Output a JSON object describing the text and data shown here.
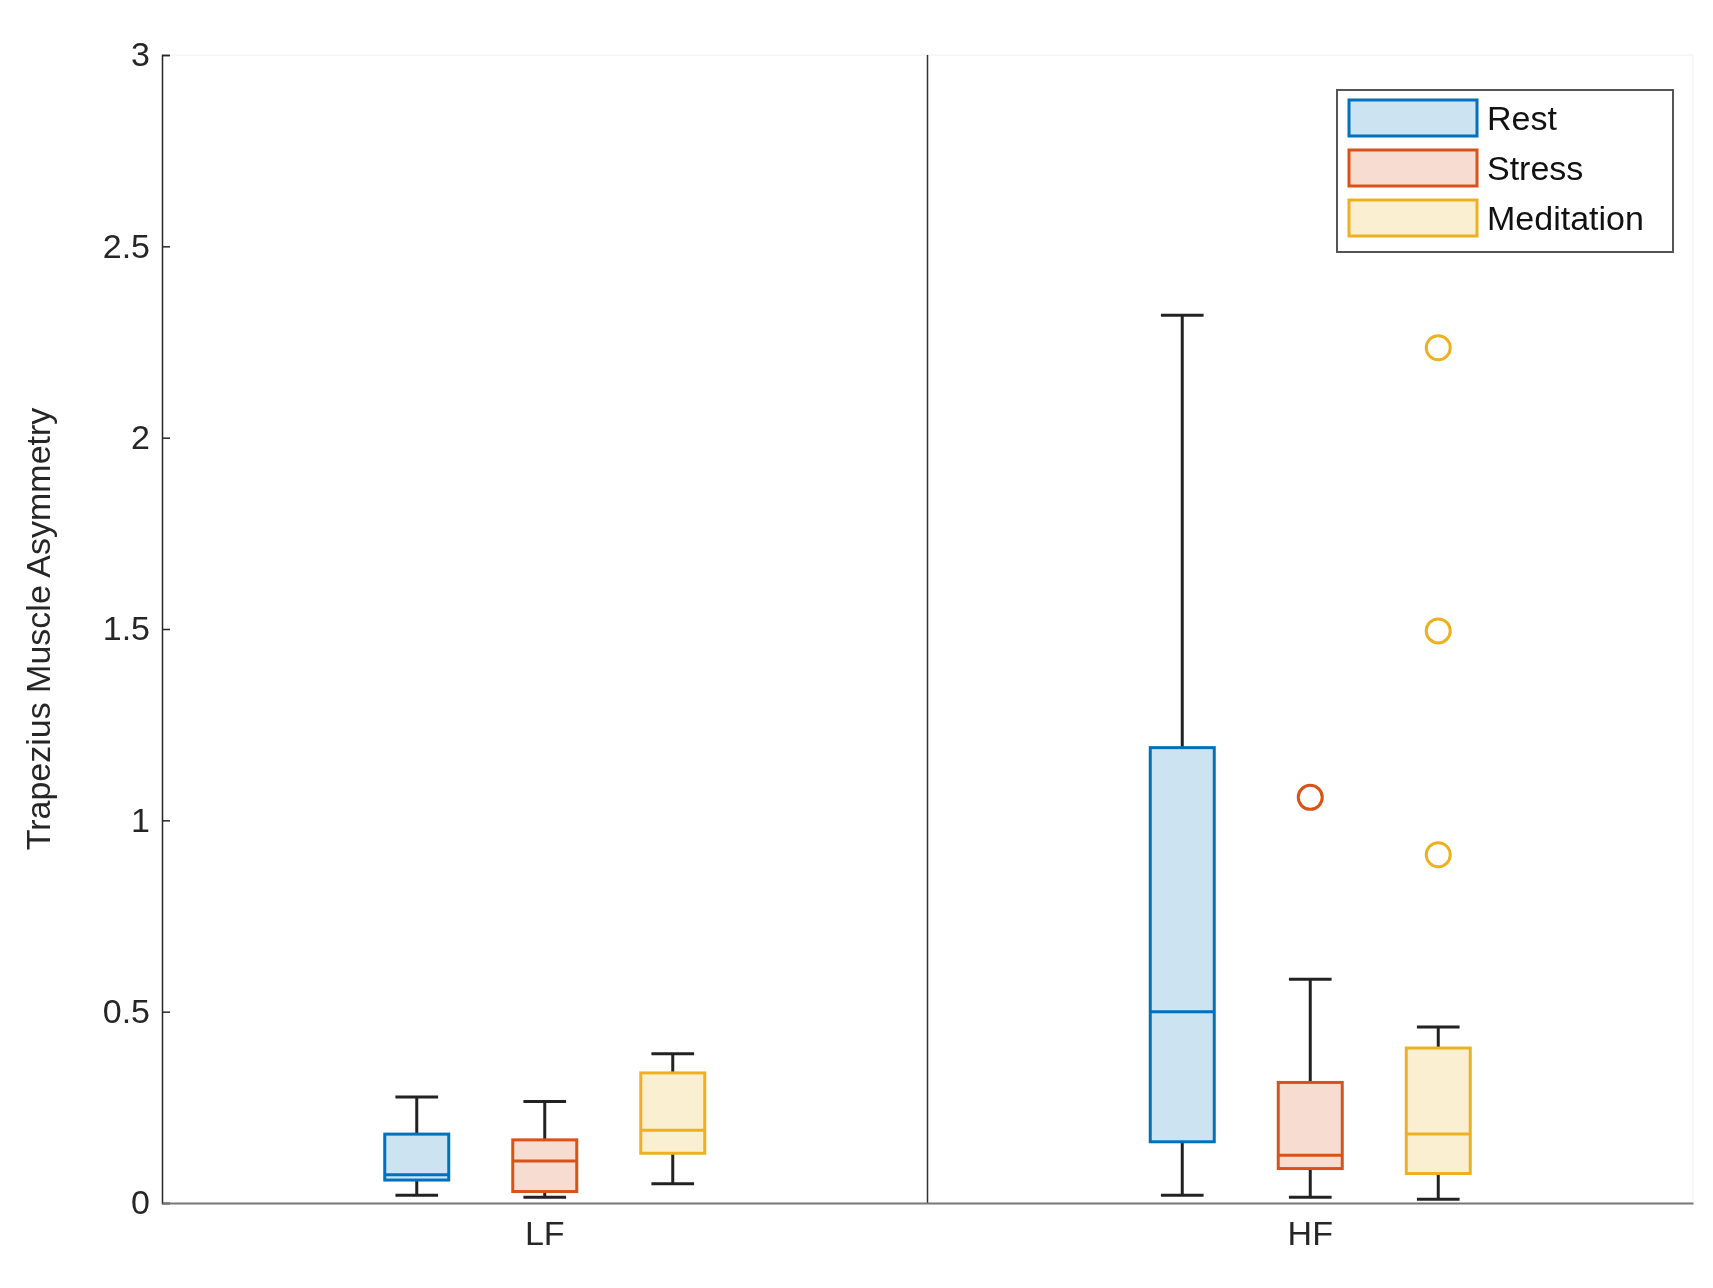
{
  "chart_data": {
    "type": "box",
    "ylabel": "Trapezius Muscle Asymmetry",
    "categories": [
      "LF",
      "HF"
    ],
    "ylim": [
      0,
      3
    ],
    "yticks": [
      0,
      0.5,
      1,
      1.5,
      2,
      2.5,
      3
    ],
    "legend": "top right",
    "series": [
      {
        "name": "Rest",
        "color": "#0072bd",
        "boxes": [
          {
            "low": 0.02,
            "q1": 0.06,
            "median": 0.074,
            "q3": 0.18,
            "high": 0.277
          },
          {
            "low": 0.02,
            "q1": 0.16,
            "median": 0.5,
            "q3": 1.19,
            "high": 2.32
          }
        ]
      },
      {
        "name": "Stress",
        "color": "#d95319",
        "boxes": [
          {
            "low": 0.015,
            "q1": 0.03,
            "median": 0.11,
            "q3": 0.165,
            "high": 0.265
          },
          {
            "low": 0.015,
            "q1": 0.09,
            "median": 0.125,
            "q3": 0.315,
            "high": 0.585,
            "outliers": [
              1.06
            ]
          }
        ]
      },
      {
        "name": "Meditation",
        "color": "#edb120",
        "boxes": [
          {
            "low": 0.05,
            "q1": 0.13,
            "median": 0.19,
            "q3": 0.34,
            "high": 0.39
          },
          {
            "low": 0.01,
            "q1": 0.077,
            "median": 0.18,
            "q3": 0.405,
            "high": 0.46,
            "outliers": [
              0.91,
              1.495,
              2.235
            ]
          }
        ]
      }
    ]
  }
}
